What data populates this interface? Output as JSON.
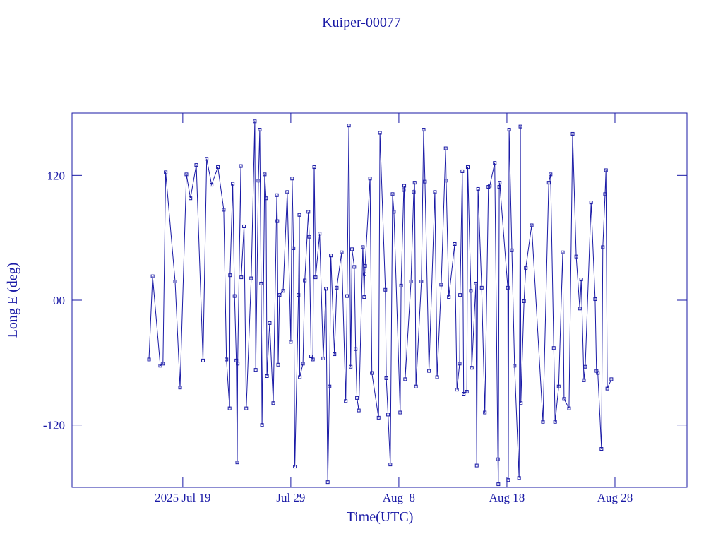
{
  "chart_data": {
    "type": "line",
    "title": "Kuiper-00077",
    "x_label": "Time(UTC)",
    "y_label": "Long E (deg)",
    "color": "#1a1aa6",
    "xlim": [
      "2025-07-08T18:00",
      "2025-09-03T16:00"
    ],
    "xticks": [
      {
        "value": "2025-07-19",
        "label": "2025 Jul 19"
      },
      {
        "value": "2025-07-29",
        "label": "Jul 29"
      },
      {
        "value": "2025-08-08",
        "label": "Aug  8"
      },
      {
        "value": "2025-08-18",
        "label": "Aug 18"
      },
      {
        "value": "2025-08-28",
        "label": "Aug 28"
      }
    ],
    "ylim": [
      -180,
      180
    ],
    "yticks": [
      -120,
      {
        "value": 0,
        "label": "00"
      },
      120
    ],
    "x": [
      "2025-07-15T21:00",
      "2025-07-16T05:00",
      "2025-07-16T22:00",
      "2025-07-17T04:00",
      "2025-07-17T10:00",
      "2025-07-18T07:00",
      "2025-07-18T18:00",
      "2025-07-19T08:00",
      "2025-07-19T17:00",
      "2025-07-20T06:00",
      "2025-07-20T21:00",
      "2025-07-21T05:00",
      "2025-07-21T16:00",
      "2025-07-22T06:00",
      "2025-07-22T19:00",
      "2025-07-23T01:00",
      "2025-07-23T08:00",
      "2025-07-23T09:00",
      "2025-07-23T15:00",
      "2025-07-23T19:00",
      "2025-07-23T23:00",
      "2025-07-24T01:00",
      "2025-07-24T02:00",
      "2025-07-24T09:00",
      "2025-07-24T10:00",
      "2025-07-24T16:00",
      "2025-07-24T21:00",
      "2025-07-25T08:00",
      "2025-07-25T16:00",
      "2025-07-25T18:00",
      "2025-07-26T00:00",
      "2025-07-26T03:00",
      "2025-07-26T06:00",
      "2025-07-26T08:00",
      "2025-07-26T14:00",
      "2025-07-26T17:00",
      "2025-07-26T19:00",
      "2025-07-27T01:00",
      "2025-07-27T09:00",
      "2025-07-27T17:00",
      "2025-07-27T18:00",
      "2025-07-27T20:00",
      "2025-07-27T23:00",
      "2025-07-28T07:00",
      "2025-07-28T16:00",
      "2025-07-29T00:00",
      "2025-07-29T03:00",
      "2025-07-29T06:00",
      "2025-07-29T09:00",
      "2025-07-29T17:00",
      "2025-07-29T19:00",
      "2025-07-29T20:00",
      "2025-07-30T03:00",
      "2025-07-30T07:00",
      "2025-07-30T15:00",
      "2025-07-30T17:00",
      "2025-07-30T21:00",
      "2025-07-31T01:00",
      "2025-07-31T04:00",
      "2025-07-31T07:00",
      "2025-07-31T16:00",
      "2025-08-01T00:00",
      "2025-08-01T06:00",
      "2025-08-01T10:00",
      "2025-08-01T14:00",
      "2025-08-01T17:00",
      "2025-08-02T01:00",
      "2025-08-02T06:00",
      "2025-08-02T17:00",
      "2025-08-03T02:00",
      "2025-08-03T05:00",
      "2025-08-03T09:00",
      "2025-08-03T13:00",
      "2025-08-03T16:00",
      "2025-08-03T21:00",
      "2025-08-04T00:00",
      "2025-08-04T03:00",
      "2025-08-04T07:00",
      "2025-08-04T16:00",
      "2025-08-04T19:00",
      "2025-08-04T20:00",
      "2025-08-04T21:00",
      "2025-08-05T08:00",
      "2025-08-05T12:00",
      "2025-08-06T03:00",
      "2025-08-06T06:00",
      "2025-08-06T18:00",
      "2025-08-06T20:00",
      "2025-08-07T00:00",
      "2025-08-07T05:00",
      "2025-08-07T10:00",
      "2025-08-07T13:00",
      "2025-08-08T03:00",
      "2025-08-08T05:00",
      "2025-08-08T11:00",
      "2025-08-08T12:00",
      "2025-08-08T14:00",
      "2025-08-09T03:00",
      "2025-08-09T09:00",
      "2025-08-09T11:00",
      "2025-08-09T14:00",
      "2025-08-10T02:00",
      "2025-08-10T07:00",
      "2025-08-10T10:00",
      "2025-08-10T19:00",
      "2025-08-11T08:00",
      "2025-08-11T13:00",
      "2025-08-11T22:00",
      "2025-08-12T08:00",
      "2025-08-12T09:00",
      "2025-08-12T15:00",
      "2025-08-13T04:00",
      "2025-08-13T09:00",
      "2025-08-13T15:00",
      "2025-08-13T16:00",
      "2025-08-13T21:00",
      "2025-08-14T00:00",
      "2025-08-14T07:00",
      "2025-08-14T09:00",
      "2025-08-14T16:00",
      "2025-08-14T18:00",
      "2025-08-15T03:00",
      "2025-08-15T05:00",
      "2025-08-15T08:00",
      "2025-08-15T16:00",
      "2025-08-15T23:00",
      "2025-08-16T07:00",
      "2025-08-16T10:00",
      "2025-08-16T21:00",
      "2025-08-17T04:00",
      "2025-08-17T05:00",
      "2025-08-17T07:00",
      "2025-08-17T08:00",
      "2025-08-18T02:00",
      "2025-08-18T03:00",
      "2025-08-18T05:00",
      "2025-08-18T11:00",
      "2025-08-18T17:00",
      "2025-08-19T03:00",
      "2025-08-19T06:00",
      "2025-08-19T07:00",
      "2025-08-19T14:00",
      "2025-08-19T18:00",
      "2025-08-20T07:00",
      "2025-08-21T08:00",
      "2025-08-21T21:00",
      "2025-08-22T01:00",
      "2025-08-22T08:00",
      "2025-08-22T11:00",
      "2025-08-22T19:00",
      "2025-08-23T04:00",
      "2025-08-23T07:00",
      "2025-08-23T18:00",
      "2025-08-24T02:00",
      "2025-08-24T10:00",
      "2025-08-24T18:00",
      "2025-08-24T21:00",
      "2025-08-25T03:00",
      "2025-08-25T06:00",
      "2025-08-25T19:00",
      "2025-08-26T04:00",
      "2025-08-26T07:00",
      "2025-08-26T10:00",
      "2025-08-26T18:00",
      "2025-08-26T21:00",
      "2025-08-27T02:00",
      "2025-08-27T04:00",
      "2025-08-27T07:00",
      "2025-08-27T16:00"
    ],
    "values": [
      -57,
      23,
      -63,
      -61,
      123,
      18,
      -84,
      121,
      98,
      130,
      -58,
      136,
      111,
      128,
      87,
      -57,
      -104,
      24,
      112,
      4,
      -58,
      -156,
      -61,
      129,
      22,
      71,
      -104,
      21,
      172,
      -67,
      115,
      164,
      16,
      -120,
      121,
      98,
      -73,
      -22,
      -99,
      101,
      76,
      -62,
      5,
      9,
      104,
      -40,
      117,
      50,
      -160,
      5,
      82,
      -74,
      -61,
      19,
      85,
      61,
      -54,
      -57,
      128,
      22,
      64,
      -56,
      11,
      -175,
      -83,
      43,
      -52,
      12,
      46,
      -97,
      4,
      168,
      -64,
      49,
      32,
      -47,
      -94,
      -106,
      51,
      3,
      25,
      33,
      117,
      -70,
      -113,
      161,
      10,
      -75,
      -110,
      -158,
      102,
      85,
      -108,
      14,
      106,
      110,
      -76,
      18,
      104,
      113,
      -83,
      18,
      164,
      114,
      -68,
      104,
      -74,
      15,
      146,
      115,
      3,
      54,
      -86,
      -61,
      5,
      124,
      -90,
      -88,
      128,
      9,
      -65,
      16,
      -159,
      107,
      12,
      -108,
      109,
      110,
      132,
      -153,
      -177,
      109,
      113,
      12,
      -173,
      164,
      48,
      -63,
      -171,
      167,
      -99,
      -1,
      31,
      72,
      -117,
      113,
      121,
      -46,
      -117,
      -83,
      46,
      -95,
      -104,
      160,
      42,
      -8,
      20,
      -77,
      -64,
      94,
      1,
      -68,
      -70,
      -143,
      51,
      102,
      125,
      -85,
      -76
    ]
  }
}
